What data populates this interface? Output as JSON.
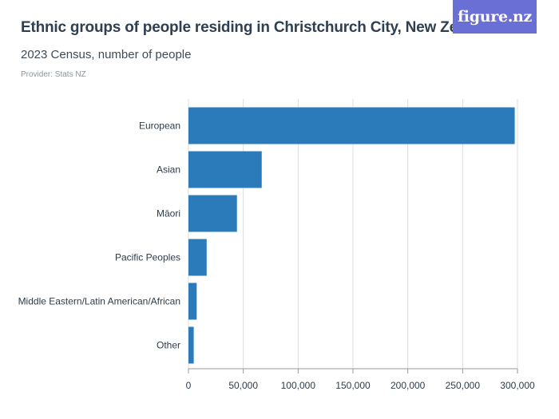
{
  "header": {
    "title": "Ethnic groups of people residing in Christchurch City, New Zealand",
    "subtitle": "2023 Census, number of people",
    "provider": "Provider: Stats NZ",
    "logo": "figure.nz"
  },
  "colors": {
    "bar": "#2b7bba",
    "grid": "#dddddd",
    "logo_bg": "#6a6fd6"
  },
  "chart_data": {
    "type": "bar",
    "orientation": "horizontal",
    "categories": [
      "European",
      "Asian",
      "Māori",
      "Pacific Peoples",
      "Middle Eastern/Latin American/African",
      "Other"
    ],
    "values": [
      297500,
      66800,
      44200,
      16600,
      7500,
      4800
    ],
    "xlim": [
      0,
      300000
    ],
    "xticks": [
      0,
      50000,
      100000,
      150000,
      200000,
      250000,
      300000
    ],
    "xtick_labels": [
      "0",
      "50,000",
      "100,000",
      "150,000",
      "200,000",
      "250,000",
      "300,000"
    ],
    "grid": true
  }
}
